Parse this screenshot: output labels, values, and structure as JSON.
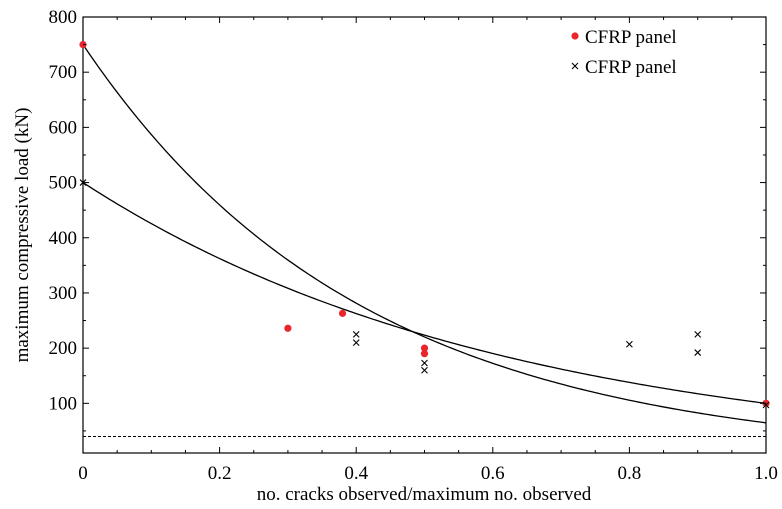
{
  "chart_data": {
    "type": "scatter",
    "xlabel": "no. cracks observed/maximum no. observed",
    "ylabel": "maximum compressive load (kN)",
    "xlim": [
      0,
      1.0
    ],
    "ylim": [
      10,
      800
    ],
    "x_ticks": [
      0,
      0.2,
      0.4,
      0.6,
      0.8,
      1.0
    ],
    "x_tick_labels": [
      "0",
      "0.2",
      "0.4",
      "0.6",
      "0.8",
      "1.0"
    ],
    "y_ticks": [
      100,
      200,
      300,
      400,
      500,
      600,
      700,
      800
    ],
    "y_tick_labels": [
      "100",
      "200",
      "300",
      "400",
      "500",
      "600",
      "700",
      "800"
    ],
    "legend_position": "top-right",
    "series": [
      {
        "name": "CFRP panel",
        "marker": "dot",
        "color": "#e8262b",
        "points": [
          {
            "x": 0.0,
            "y": 750
          },
          {
            "x": 0.3,
            "y": 236
          },
          {
            "x": 0.38,
            "y": 263
          },
          {
            "x": 0.5,
            "y": 200
          },
          {
            "x": 0.5,
            "y": 190
          },
          {
            "x": 1.0,
            "y": 100
          }
        ]
      },
      {
        "name": "CFRP panel",
        "marker": "cross",
        "color": "#000000",
        "points": [
          {
            "x": 0.0,
            "y": 500
          },
          {
            "x": 0.4,
            "y": 225
          },
          {
            "x": 0.4,
            "y": 210
          },
          {
            "x": 0.5,
            "y": 173
          },
          {
            "x": 0.5,
            "y": 160
          },
          {
            "x": 0.8,
            "y": 207
          },
          {
            "x": 0.9,
            "y": 225
          },
          {
            "x": 0.9,
            "y": 192
          },
          {
            "x": 1.0,
            "y": 97
          }
        ]
      }
    ],
    "fit_curves": [
      {
        "model": "exponential",
        "a": 750,
        "b": 2.45
      },
      {
        "model": "exponential",
        "a": 500,
        "b": 1.61
      }
    ],
    "reference_line": {
      "y": 40,
      "style": "dashed"
    }
  }
}
